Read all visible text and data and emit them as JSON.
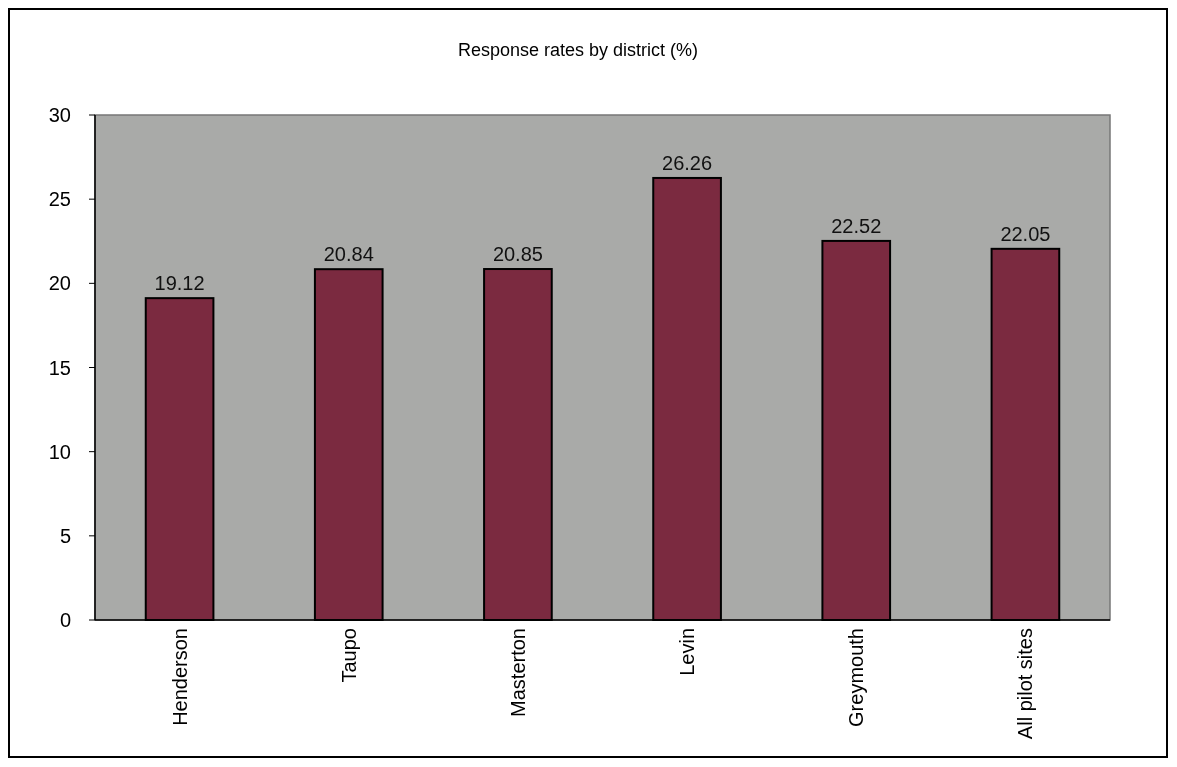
{
  "chart_data": {
    "type": "bar",
    "title": "Response rates by district (%)",
    "categories": [
      "Henderson",
      "Taupo",
      "Masterton",
      "Levin",
      "Greymouth",
      "All pilot sites"
    ],
    "values": [
      19.12,
      20.84,
      20.85,
      26.26,
      22.52,
      22.05
    ],
    "color": "#7b2a40",
    "ylim": [
      0,
      30
    ],
    "yticks": [
      0,
      5,
      10,
      15,
      20,
      25,
      30
    ],
    "grid": false,
    "data_labels": true
  }
}
